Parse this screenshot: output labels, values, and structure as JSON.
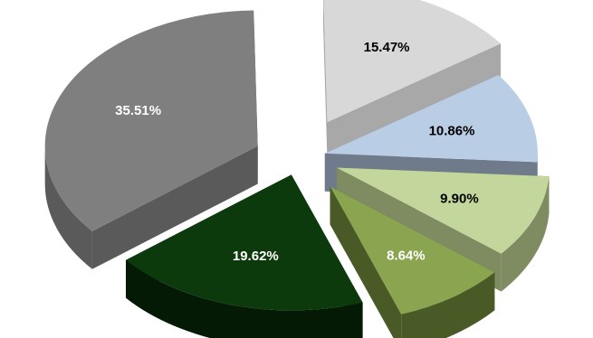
{
  "chart_data": {
    "type": "pie",
    "style": "3d-exploded",
    "title": "",
    "legend": "none",
    "slices": [
      {
        "label": "15.47%",
        "value": 15.47,
        "color": "#d8d8d8",
        "side": "#a8a8a8",
        "label_color": "#000000"
      },
      {
        "label": "10.86%",
        "value": 10.86,
        "color": "#b9cde5",
        "side": "#6f7b8a",
        "label_color": "#000000"
      },
      {
        "label": "9.90%",
        "value": 9.9,
        "color": "#c3d69b",
        "side": "#7f8c62",
        "label_color": "#000000"
      },
      {
        "label": "8.64%",
        "value": 8.64,
        "color": "#8aa450",
        "side": "#4a5a26",
        "label_color": "#ffffff"
      },
      {
        "label": "19.62%",
        "value": 19.62,
        "color": "#0c3a0c",
        "side": "#041a04",
        "label_color": "#ffffff"
      },
      {
        "label": "35.51%",
        "value": 35.51,
        "color": "#7f7f7f",
        "side": "#5a5a5a",
        "label_color": "#ffffff"
      }
    ]
  }
}
